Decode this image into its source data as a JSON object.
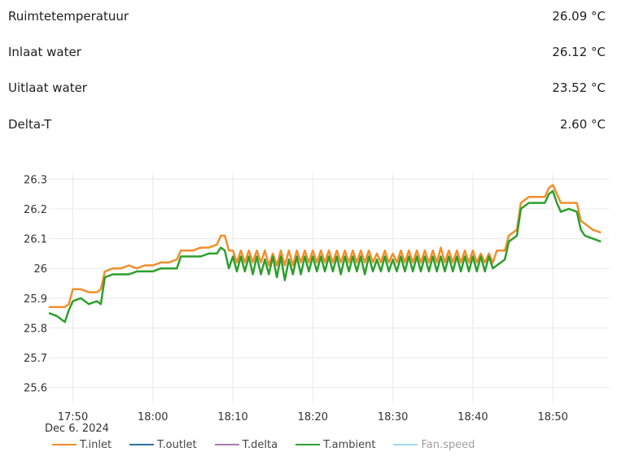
{
  "readings": [
    {
      "label": "Ruimtetemperatuur",
      "value": "26.09 °C"
    },
    {
      "label": "Inlaat water",
      "value": "26.12 °C"
    },
    {
      "label": "Uitlaat water",
      "value": "23.52 °C"
    },
    {
      "label": "Delta-T",
      "value": "2.60 °C"
    }
  ],
  "chart_data": {
    "type": "line",
    "title": "",
    "xlabel": "",
    "ylabel": "",
    "date_label": "Dec 6. 2024",
    "x_unit": "minutes (time of day, 17:47 to 18:56)",
    "xlim": [
      "17:47",
      "18:57"
    ],
    "ylim": [
      25.55,
      26.32
    ],
    "y_ticks": [
      "25.6",
      "25.7",
      "25.8",
      "25.9",
      "26",
      "26.1",
      "26.2",
      "26.3"
    ],
    "x_ticks": [
      "17:50",
      "18:00",
      "18:10",
      "18:20",
      "18:30",
      "18:40",
      "18:50"
    ],
    "grid": true,
    "legend_position": "bottom-left",
    "series": [
      {
        "name": "T.inlet",
        "color": "#f28e2b",
        "visible": true,
        "points": [
          [
            "17:47",
            25.87
          ],
          [
            "17:48",
            25.87
          ],
          [
            "17:49",
            25.87
          ],
          [
            "17:49.5",
            25.88
          ],
          [
            "17:50",
            25.93
          ],
          [
            "17:51",
            25.93
          ],
          [
            "17:52",
            25.92
          ],
          [
            "17:53",
            25.92
          ],
          [
            "17:53.5",
            25.93
          ],
          [
            "17:54",
            25.99
          ],
          [
            "17:55",
            26.0
          ],
          [
            "17:56",
            26.0
          ],
          [
            "17:57",
            26.01
          ],
          [
            "17:58",
            26.0
          ],
          [
            "17:59",
            26.01
          ],
          [
            "18:00",
            26.01
          ],
          [
            "18:01",
            26.02
          ],
          [
            "18:02",
            26.02
          ],
          [
            "18:03",
            26.03
          ],
          [
            "18:03.5",
            26.06
          ],
          [
            "18:04",
            26.06
          ],
          [
            "18:05",
            26.06
          ],
          [
            "18:06",
            26.07
          ],
          [
            "18:07",
            26.07
          ],
          [
            "18:08",
            26.08
          ],
          [
            "18:08.5",
            26.11
          ],
          [
            "18:09",
            26.11
          ],
          [
            "18:09.5",
            26.06
          ],
          [
            "18:10",
            26.06
          ],
          [
            "18:10.5",
            26.02
          ],
          [
            "18:11",
            26.06
          ],
          [
            "18:11.5",
            26.02
          ],
          [
            "18:12",
            26.06
          ],
          [
            "18:12.5",
            26.02
          ],
          [
            "18:13",
            26.06
          ],
          [
            "18:13.5",
            26.02
          ],
          [
            "18:14",
            26.06
          ],
          [
            "18:14.5",
            26.01
          ],
          [
            "18:15",
            26.05
          ],
          [
            "18:15.5",
            26.01
          ],
          [
            "18:16",
            26.06
          ],
          [
            "18:16.5",
            26.01
          ],
          [
            "18:17",
            26.06
          ],
          [
            "18:17.5",
            26.01
          ],
          [
            "18:18",
            26.06
          ],
          [
            "18:18.5",
            26.02
          ],
          [
            "18:19",
            26.06
          ],
          [
            "18:19.5",
            26.02
          ],
          [
            "18:20",
            26.06
          ],
          [
            "18:20.5",
            26.02
          ],
          [
            "18:21",
            26.06
          ],
          [
            "18:21.5",
            26.02
          ],
          [
            "18:22",
            26.06
          ],
          [
            "18:22.5",
            26.02
          ],
          [
            "18:23",
            26.06
          ],
          [
            "18:23.5",
            26.02
          ],
          [
            "18:24",
            26.06
          ],
          [
            "18:24.5",
            26.02
          ],
          [
            "18:25",
            26.06
          ],
          [
            "18:25.5",
            26.02
          ],
          [
            "18:26",
            26.06
          ],
          [
            "18:26.5",
            26.02
          ],
          [
            "18:27",
            26.06
          ],
          [
            "18:27.5",
            26.02
          ],
          [
            "18:28",
            26.05
          ],
          [
            "18:28.5",
            26.02
          ],
          [
            "18:29",
            26.06
          ],
          [
            "18:29.5",
            26.02
          ],
          [
            "18:30",
            26.05
          ],
          [
            "18:30.5",
            26.02
          ],
          [
            "18:31",
            26.06
          ],
          [
            "18:31.5",
            26.02
          ],
          [
            "18:32",
            26.06
          ],
          [
            "18:32.5",
            26.02
          ],
          [
            "18:33",
            26.06
          ],
          [
            "18:33.5",
            26.02
          ],
          [
            "18:34",
            26.06
          ],
          [
            "18:34.5",
            26.02
          ],
          [
            "18:35",
            26.06
          ],
          [
            "18:35.5",
            26.02
          ],
          [
            "18:36",
            26.07
          ],
          [
            "18:36.5",
            26.02
          ],
          [
            "18:37",
            26.06
          ],
          [
            "18:37.5",
            26.02
          ],
          [
            "18:38",
            26.06
          ],
          [
            "18:38.5",
            26.02
          ],
          [
            "18:39",
            26.06
          ],
          [
            "18:39.5",
            26.02
          ],
          [
            "18:40",
            26.06
          ],
          [
            "18:40.5",
            26.02
          ],
          [
            "18:41",
            26.05
          ],
          [
            "18:41.5",
            26.02
          ],
          [
            "18:42",
            26.05
          ],
          [
            "18:42.5",
            26.02
          ],
          [
            "18:43",
            26.06
          ],
          [
            "18:44",
            26.06
          ],
          [
            "18:44.5",
            26.11
          ],
          [
            "18:45",
            26.12
          ],
          [
            "18:45.5",
            26.13
          ],
          [
            "18:46",
            26.22
          ],
          [
            "18:46.5",
            26.23
          ],
          [
            "18:47",
            26.24
          ],
          [
            "18:48",
            26.24
          ],
          [
            "18:49",
            26.24
          ],
          [
            "18:49.5",
            26.27
          ],
          [
            "18:50",
            26.28
          ],
          [
            "18:50.5",
            26.25
          ],
          [
            "18:51",
            26.22
          ],
          [
            "18:52",
            26.22
          ],
          [
            "18:53",
            26.22
          ],
          [
            "18:53.5",
            26.16
          ],
          [
            "18:54",
            26.15
          ],
          [
            "18:55",
            26.13
          ],
          [
            "18:56",
            26.12
          ]
        ]
      },
      {
        "name": "T.outlet",
        "color": "#2e6f9e",
        "visible": true,
        "points": []
      },
      {
        "name": "T.delta",
        "color": "#a77cb0",
        "visible": true,
        "points": []
      },
      {
        "name": "T.ambient",
        "color": "#2ca02c",
        "visible": true,
        "points": [
          [
            "17:47",
            25.85
          ],
          [
            "17:48",
            25.84
          ],
          [
            "17:48.5",
            25.83
          ],
          [
            "17:49",
            25.82
          ],
          [
            "17:49.5",
            25.86
          ],
          [
            "17:50",
            25.89
          ],
          [
            "17:51",
            25.9
          ],
          [
            "17:52",
            25.88
          ],
          [
            "17:53",
            25.89
          ],
          [
            "17:53.5",
            25.88
          ],
          [
            "17:54",
            25.97
          ],
          [
            "17:55",
            25.98
          ],
          [
            "17:56",
            25.98
          ],
          [
            "17:57",
            25.98
          ],
          [
            "17:58",
            25.99
          ],
          [
            "17:59",
            25.99
          ],
          [
            "18:00",
            25.99
          ],
          [
            "18:01",
            26.0
          ],
          [
            "18:02",
            26.0
          ],
          [
            "18:03",
            26.0
          ],
          [
            "18:03.5",
            26.04
          ],
          [
            "18:04",
            26.04
          ],
          [
            "18:05",
            26.04
          ],
          [
            "18:06",
            26.04
          ],
          [
            "18:07",
            26.05
          ],
          [
            "18:08",
            26.05
          ],
          [
            "18:08.5",
            26.07
          ],
          [
            "18:09",
            26.06
          ],
          [
            "18:09.5",
            26.0
          ],
          [
            "18:10",
            26.04
          ],
          [
            "18:10.5",
            25.99
          ],
          [
            "18:11",
            26.04
          ],
          [
            "18:11.5",
            25.99
          ],
          [
            "18:12",
            26.04
          ],
          [
            "18:12.5",
            25.98
          ],
          [
            "18:13",
            26.04
          ],
          [
            "18:13.5",
            25.98
          ],
          [
            "18:14",
            26.03
          ],
          [
            "18:14.5",
            25.98
          ],
          [
            "18:15",
            26.04
          ],
          [
            "18:15.5",
            25.97
          ],
          [
            "18:16",
            26.04
          ],
          [
            "18:16.5",
            25.96
          ],
          [
            "18:17",
            26.03
          ],
          [
            "18:17.5",
            25.98
          ],
          [
            "18:18",
            26.04
          ],
          [
            "18:18.5",
            25.98
          ],
          [
            "18:19",
            26.04
          ],
          [
            "18:19.5",
            25.99
          ],
          [
            "18:20",
            26.04
          ],
          [
            "18:20.5",
            25.99
          ],
          [
            "18:21",
            26.04
          ],
          [
            "18:21.5",
            25.99
          ],
          [
            "18:22",
            26.04
          ],
          [
            "18:22.5",
            25.99
          ],
          [
            "18:23",
            26.04
          ],
          [
            "18:23.5",
            25.98
          ],
          [
            "18:24",
            26.04
          ],
          [
            "18:24.5",
            25.99
          ],
          [
            "18:25",
            26.04
          ],
          [
            "18:25.5",
            25.99
          ],
          [
            "18:26",
            26.04
          ],
          [
            "18:26.5",
            25.98
          ],
          [
            "18:27",
            26.04
          ],
          [
            "18:27.5",
            25.99
          ],
          [
            "18:28",
            26.03
          ],
          [
            "18:28.5",
            25.99
          ],
          [
            "18:29",
            26.04
          ],
          [
            "18:29.5",
            25.99
          ],
          [
            "18:30",
            26.03
          ],
          [
            "18:30.5",
            25.99
          ],
          [
            "18:31",
            26.04
          ],
          [
            "18:31.5",
            25.99
          ],
          [
            "18:32",
            26.04
          ],
          [
            "18:32.5",
            25.99
          ],
          [
            "18:33",
            26.04
          ],
          [
            "18:33.5",
            25.99
          ],
          [
            "18:34",
            26.04
          ],
          [
            "18:34.5",
            25.99
          ],
          [
            "18:35",
            26.04
          ],
          [
            "18:35.5",
            25.99
          ],
          [
            "18:36",
            26.04
          ],
          [
            "18:36.5",
            25.99
          ],
          [
            "18:37",
            26.04
          ],
          [
            "18:37.5",
            25.99
          ],
          [
            "18:38",
            26.04
          ],
          [
            "18:38.5",
            25.99
          ],
          [
            "18:39",
            26.04
          ],
          [
            "18:39.5",
            25.99
          ],
          [
            "18:40",
            26.04
          ],
          [
            "18:40.5",
            25.99
          ],
          [
            "18:41",
            26.04
          ],
          [
            "18:41.5",
            25.99
          ],
          [
            "18:42",
            26.04
          ],
          [
            "18:42.5",
            26.0
          ],
          [
            "18:43",
            26.01
          ],
          [
            "18:44",
            26.03
          ],
          [
            "18:44.5",
            26.09
          ],
          [
            "18:45",
            26.1
          ],
          [
            "18:45.5",
            26.11
          ],
          [
            "18:46",
            26.2
          ],
          [
            "18:46.5",
            26.21
          ],
          [
            "18:47",
            26.22
          ],
          [
            "18:48",
            26.22
          ],
          [
            "18:49",
            26.22
          ],
          [
            "18:49.5",
            26.25
          ],
          [
            "18:50",
            26.26
          ],
          [
            "18:50.5",
            26.22
          ],
          [
            "18:51",
            26.19
          ],
          [
            "18:52",
            26.2
          ],
          [
            "18:53",
            26.19
          ],
          [
            "18:53.5",
            26.13
          ],
          [
            "18:54",
            26.11
          ],
          [
            "18:55",
            26.1
          ],
          [
            "18:56",
            26.09
          ]
        ]
      },
      {
        "name": "Fan.speed",
        "color": "#9edae5",
        "visible": false,
        "points": []
      }
    ]
  }
}
